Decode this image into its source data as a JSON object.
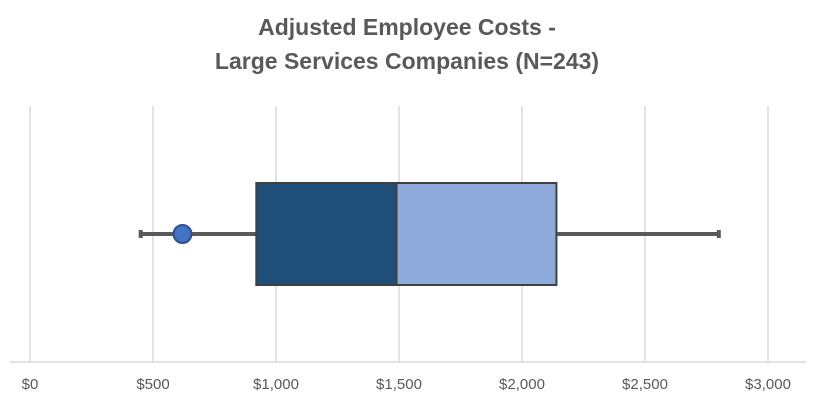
{
  "chart_data": {
    "type": "box",
    "title": "Adjusted Employee Costs -",
    "subtitle": "Large Services Companies (N=243)",
    "x_ticks": [
      "$0",
      "$500",
      "$1,000",
      "$1,500",
      "$2,000",
      "$2,500",
      "$3,000"
    ],
    "x_tick_values": [
      0,
      500,
      1000,
      1500,
      2000,
      2500,
      3000
    ],
    "xlim": [
      0,
      3000
    ],
    "grid": true,
    "box": {
      "min": 450,
      "q1": 920,
      "median": 1490,
      "q3": 2140,
      "max": 2800,
      "mean": 620,
      "lower_color": "#1f4e79",
      "upper_color": "#8eaadb",
      "mean_color": "#4472c4"
    }
  }
}
